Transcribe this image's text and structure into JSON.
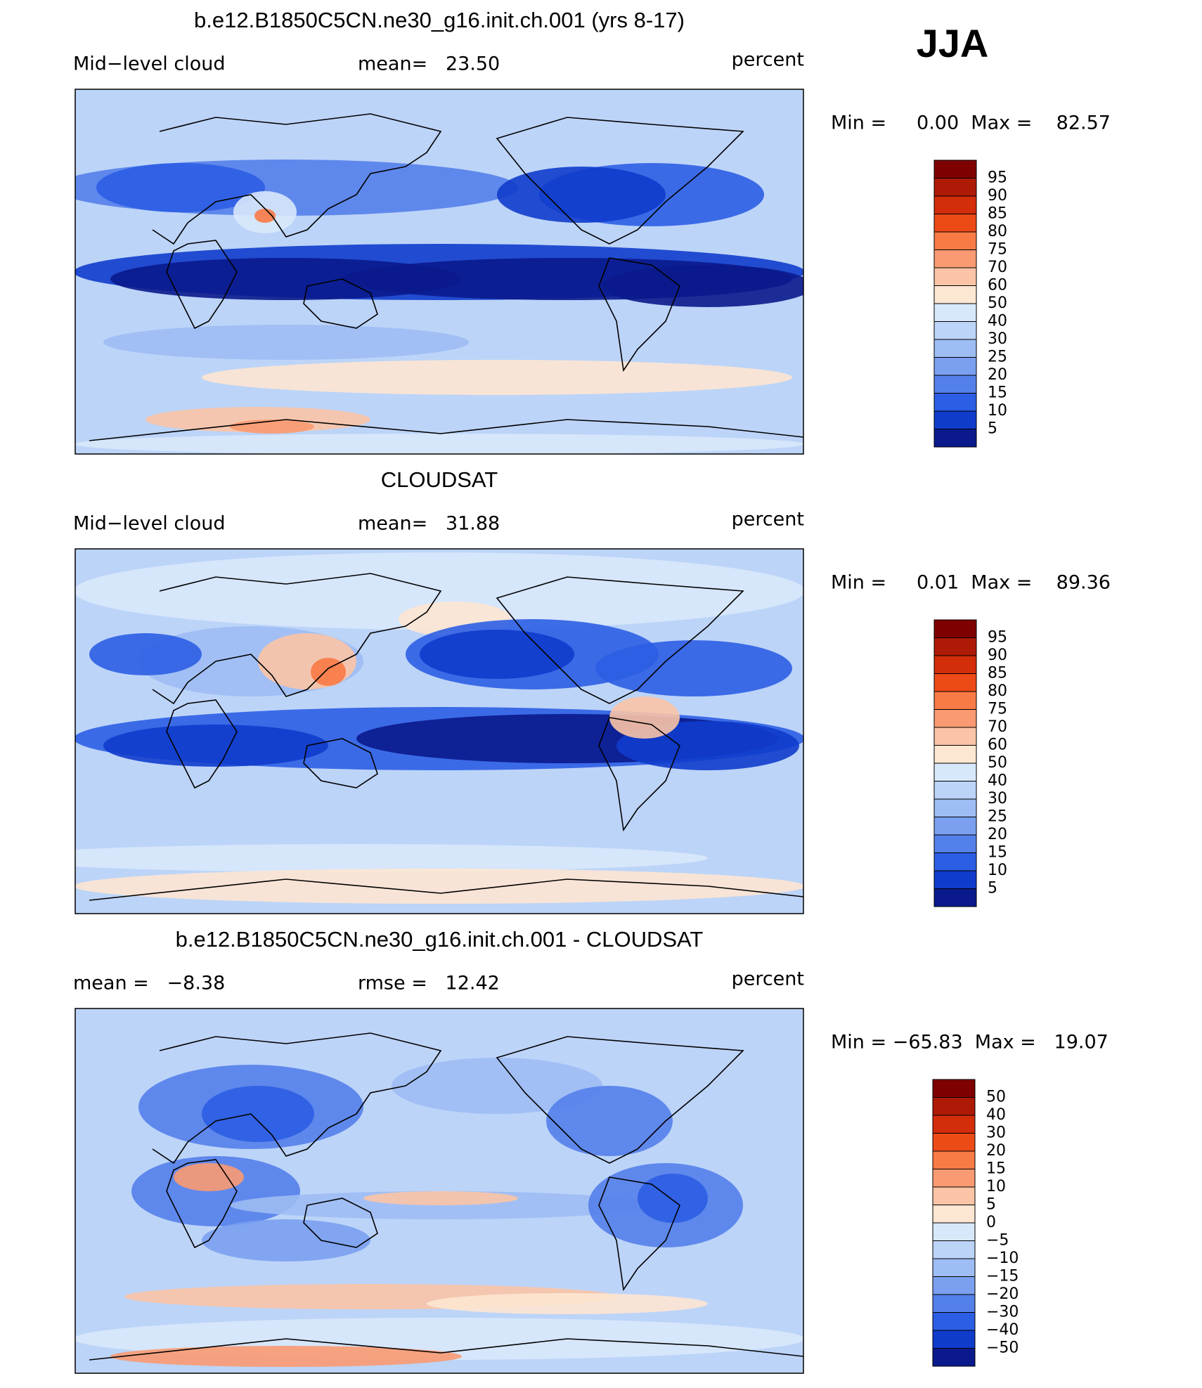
{
  "season": "JJA",
  "colorbar_colors": [
    "#7f0000",
    "#ad1a06",
    "#d42d0a",
    "#ec4a17",
    "#f87a45",
    "#f99a72",
    "#fbc4a6",
    "#fde6d2",
    "#d8e8fb",
    "#bcd4f8",
    "#9dbdf4",
    "#7aa0ef",
    "#5480ea",
    "#2c5ee4",
    "#0f3ccb",
    "#0a1a8c"
  ],
  "panels": [
    {
      "title": "b.e12.B1850C5CN.ne30_g16.init.ch.001 (yrs 8-17)",
      "left": "Mid−level cloud",
      "center": "mean=   23.50",
      "right": "percent",
      "minmax": "Min =     0.00  Max =    82.57",
      "colorbar_labels": [
        "95",
        "90",
        "85",
        "80",
        "75",
        "70",
        "60",
        "50",
        "40",
        "30",
        "25",
        "20",
        "15",
        "10",
        "5"
      ]
    },
    {
      "title": "CLOUDSAT",
      "left": "Mid−level cloud",
      "center": "mean=   31.88",
      "right": "percent",
      "minmax": "Min =     0.01  Max =    89.36",
      "colorbar_labels": [
        "95",
        "90",
        "85",
        "80",
        "75",
        "70",
        "60",
        "50",
        "40",
        "30",
        "25",
        "20",
        "15",
        "10",
        "5"
      ]
    },
    {
      "title": "b.e12.B1850C5CN.ne30_g16.init.ch.001 - CLOUDSAT",
      "left": "mean =   −8.38",
      "center": "rmse =   12.42",
      "right": "percent",
      "minmax": "Min = −65.83  Max =   19.07",
      "colorbar_labels": [
        "50",
        "40",
        "30",
        "20",
        "15",
        "10",
        "5",
        "0",
        "−5",
        "−10",
        "−15",
        "−20",
        "−30",
        "−40",
        "−50"
      ]
    }
  ]
}
